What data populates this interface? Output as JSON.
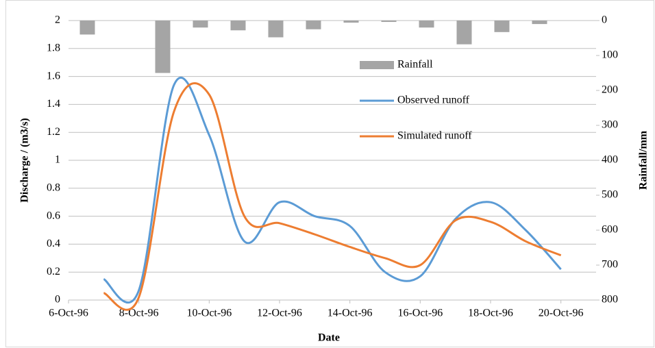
{
  "chart_data": {
    "type": "line",
    "x": [
      "7-Oct-96",
      "8-Oct-96",
      "9-Oct-96",
      "10-Oct-96",
      "11-Oct-96",
      "12-Oct-96",
      "13-Oct-96",
      "14-Oct-96",
      "15-Oct-96",
      "16-Oct-96",
      "17-Oct-96",
      "18-Oct-96",
      "19-Oct-96",
      "20-Oct-96"
    ],
    "xlim": [
      "6-Oct-96",
      "21-Oct-96"
    ],
    "xticks": [
      "6-Oct-96",
      "8-Oct-96",
      "10-Oct-96",
      "12-Oct-96",
      "14-Oct-96",
      "16-Oct-96",
      "18-Oct-96",
      "20-Oct-96"
    ],
    "x_label": "Date",
    "y_label": "Discharge / (m3/s)",
    "y2_label": "Rainfall/mm",
    "ylim": [
      0,
      2
    ],
    "yticks": [
      0,
      0.2,
      0.4,
      0.6,
      0.8,
      1,
      1.2,
      1.4,
      1.6,
      1.8,
      2
    ],
    "y2lim": [
      800,
      0
    ],
    "y2ticks": [
      0,
      100,
      200,
      300,
      400,
      500,
      600,
      700,
      800
    ],
    "grid": true,
    "legend": "right",
    "series": [
      {
        "name": "Rainfall",
        "type": "bar",
        "axis": "y2",
        "color": "#a5a5a5",
        "values": [
          40,
          0,
          150,
          20,
          28,
          48,
          25,
          6,
          4,
          20,
          68,
          33,
          10,
          0
        ]
      },
      {
        "name": "Observed runoff",
        "type": "line",
        "color": "#5b9bd5",
        "values": [
          0.15,
          0.07,
          1.54,
          1.18,
          0.42,
          0.7,
          0.6,
          0.53,
          0.2,
          0.17,
          0.58,
          0.7,
          0.5,
          0.22
        ]
      },
      {
        "name": "Simulated runoff",
        "type": "line",
        "color": "#ed7d31",
        "values": [
          0.05,
          0.02,
          1.35,
          1.47,
          0.6,
          0.55,
          0.47,
          0.38,
          0.3,
          0.25,
          0.57,
          0.56,
          0.42,
          0.32
        ]
      }
    ]
  }
}
